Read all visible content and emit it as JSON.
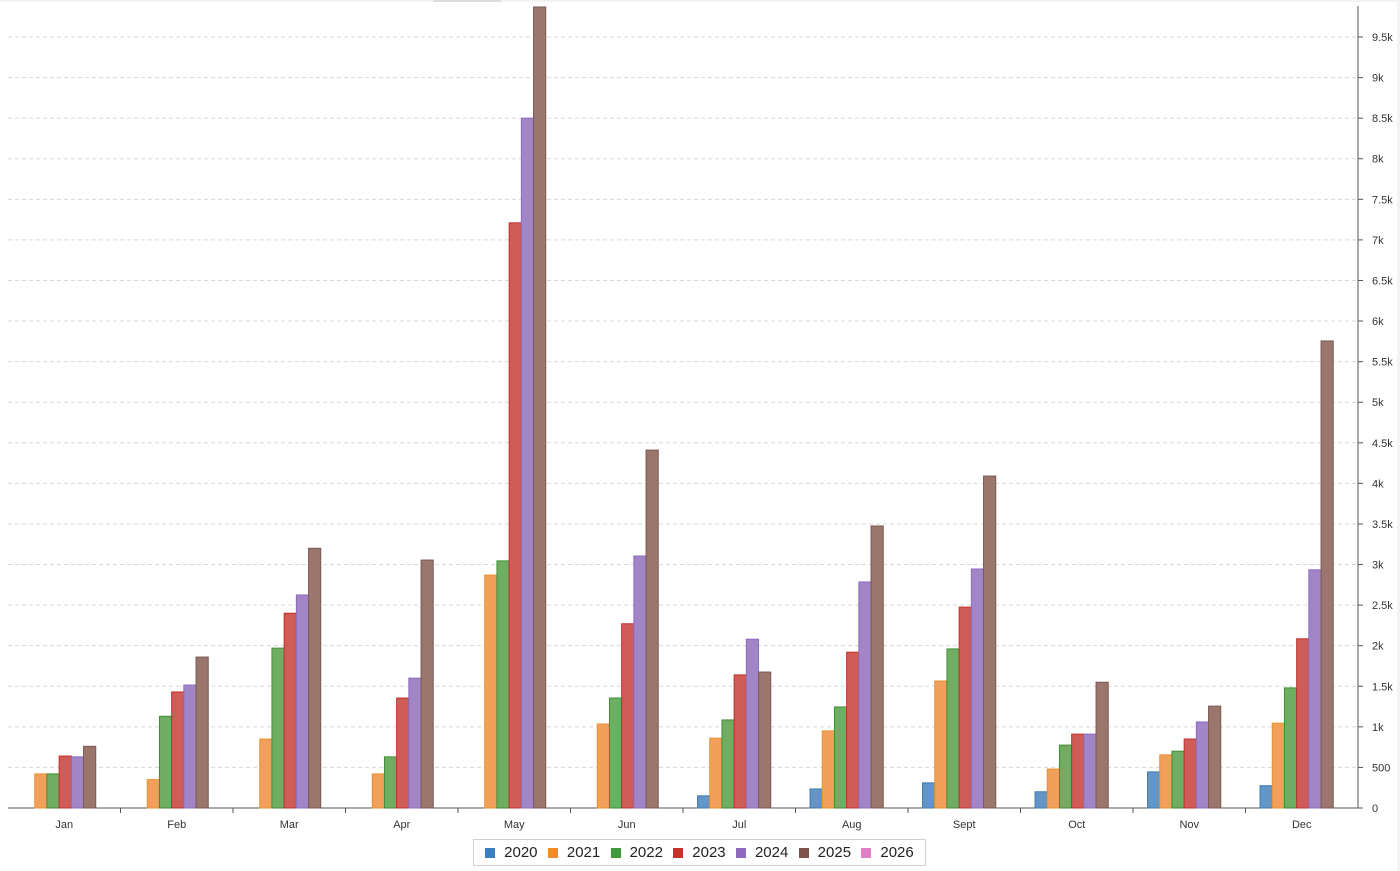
{
  "chart_data": {
    "type": "bar",
    "title": "",
    "xlabel": "",
    "ylabel": "",
    "categories": [
      "Jan",
      "Feb",
      "Mar",
      "Apr",
      "May",
      "Jun",
      "Jul",
      "Aug",
      "Sept",
      "Oct",
      "Nov",
      "Dec"
    ],
    "series": [
      {
        "name": "2020",
        "color": "#1f77b4",
        "values": [
          0,
          0,
          0,
          0,
          0,
          0,
          150,
          235,
          310,
          200,
          445,
          275
        ]
      },
      {
        "name": "2021",
        "color": "#ff7f0e",
        "values": [
          420,
          350,
          850,
          420,
          2870,
          1035,
          860,
          950,
          1565,
          480,
          655,
          1045
        ]
      },
      {
        "name": "2022",
        "color": "#2ca02c",
        "values": [
          420,
          1130,
          1970,
          630,
          3045,
          1355,
          1085,
          1245,
          1960,
          775,
          700,
          1480
        ]
      },
      {
        "name": "2023",
        "color": "#d62728",
        "values": [
          640,
          1430,
          2400,
          1355,
          7210,
          2270,
          1640,
          1920,
          2475,
          910,
          850,
          2085
        ]
      },
      {
        "name": "2024",
        "color": "#9467bd",
        "values": [
          630,
          1515,
          2625,
          1600,
          8500,
          3105,
          2080,
          2785,
          2945,
          910,
          1060,
          2935
        ]
      },
      {
        "name": "2025",
        "color": "#8c564b",
        "values": [
          760,
          1860,
          3200,
          3055,
          9870,
          4410,
          1675,
          3475,
          4090,
          1550,
          1255,
          5755
        ]
      },
      {
        "name": "2026",
        "color": "#e377c2",
        "values": [
          0,
          0,
          0,
          0,
          0,
          0,
          0,
          0,
          0,
          0,
          0,
          0
        ]
      }
    ],
    "yaxis": {
      "position": "right",
      "ticks": [
        0,
        500,
        1000,
        1500,
        2000,
        2500,
        3000,
        3500,
        4000,
        4500,
        5000,
        5500,
        6000,
        6500,
        7000,
        7500,
        8000,
        8500,
        9000,
        9500
      ],
      "tick_labels": [
        "0",
        "500",
        "1k",
        "1.5k",
        "2k",
        "2.5k",
        "3k",
        "3.5k",
        "4k",
        "4.5k",
        "5k",
        "5.5k",
        "6k",
        "6.5k",
        "7k",
        "7.5k",
        "8k",
        "8.5k",
        "9k",
        "9.5k"
      ],
      "ylim": [
        0,
        9870
      ]
    },
    "grid": true,
    "legend_position": "bottom-center"
  },
  "legend": {
    "items": [
      {
        "label": "2020",
        "color": "#3a7fbf"
      },
      {
        "label": "2021",
        "color": "#f28a2e"
      },
      {
        "label": "2022",
        "color": "#3f9a3a"
      },
      {
        "label": "2023",
        "color": "#c9302c"
      },
      {
        "label": "2024",
        "color": "#8e6bbf"
      },
      {
        "label": "2025",
        "color": "#7d5248"
      },
      {
        "label": "2026",
        "color": "#e07fc8"
      }
    ]
  },
  "style": {
    "bar_colors": [
      "#6396c7",
      "#f0a05a",
      "#6fae62",
      "#d05c58",
      "#a285c6",
      "#9a766d",
      "#e597cf"
    ],
    "bar_borders": [
      "#3f78ad",
      "#e8912f",
      "#3f8e35",
      "#c2302c",
      "#8d6bbf",
      "#7b5a52",
      "#d071b8"
    ],
    "grid_color": "#d8d8d8",
    "axis_color": "#555555"
  }
}
